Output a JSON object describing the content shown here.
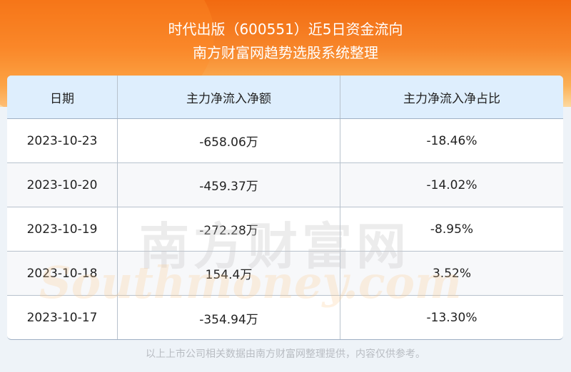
{
  "header": {
    "title": "时代出版（600551）近5日资金流向",
    "subtitle": "南方财富网趋势选股系统整理"
  },
  "table": {
    "columns": [
      "日期",
      "主力净流入净额",
      "主力净流入净占比"
    ],
    "rows": [
      [
        "2023-10-23",
        "-658.06万",
        "-18.46%"
      ],
      [
        "2023-10-20",
        "-459.37万",
        "-14.02%"
      ],
      [
        "2023-10-19",
        "-272.28万",
        "-8.95%"
      ],
      [
        "2023-10-18",
        "154.4万",
        "3.52%"
      ],
      [
        "2023-10-17",
        "-354.94万",
        "-13.30%"
      ]
    ]
  },
  "watermark": {
    "cn": "南方财富网",
    "en": "Southmoney.com"
  },
  "footer": "以上上市公司相关数据由南方财富网整理提供，内容仅供参考。",
  "colors": {
    "banner": "#f26a10",
    "header_bg": "#deeefd"
  }
}
